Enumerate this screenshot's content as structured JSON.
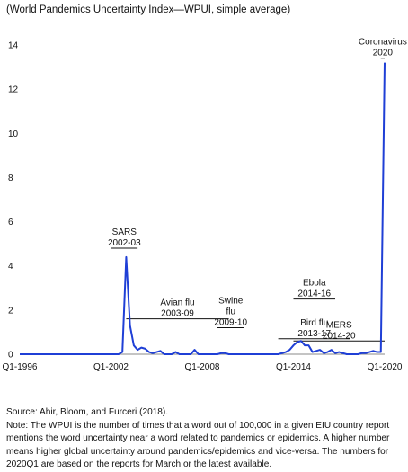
{
  "subtitle": "(World Pandemics Uncertainty Index—WPUI, simple average)",
  "source": "Source: Ahir, Bloom, and Furceri (2018).",
  "note": "Note:  The WPUI is the number of times that a word out of 100,000 in a given EIU country report mentions the word uncertainty near a word related to pandemics or epidemics. A higher number means higher global uncertainty around pandemics/epidemics and vice-versa. The numbers for 2020Q1 are based on the reports for March or the latest available.",
  "chart_data": {
    "type": "line",
    "series_color": "#1f3fd6",
    "ylim": [
      0,
      14
    ],
    "yticks": [
      0,
      2,
      4,
      6,
      8,
      10,
      12,
      14
    ],
    "x_start": "1996Q1",
    "x_end": "2020Q1",
    "xticks": [
      "Q1-1996",
      "Q1-2002",
      "Q1-2008",
      "Q1-2014",
      "Q1-2020"
    ],
    "grid": false,
    "legend": "none",
    "points": [
      {
        "x": "1996Q1",
        "y": 0
      },
      {
        "x": "2002Q3",
        "y": 0
      },
      {
        "x": "2002Q4",
        "y": 0.1
      },
      {
        "x": "2003Q1",
        "y": 4.4
      },
      {
        "x": "2003Q2",
        "y": 1.3
      },
      {
        "x": "2003Q3",
        "y": 0.4
      },
      {
        "x": "2003Q4",
        "y": 0.2
      },
      {
        "x": "2004Q1",
        "y": 0.3
      },
      {
        "x": "2004Q2",
        "y": 0.25
      },
      {
        "x": "2004Q3",
        "y": 0.1
      },
      {
        "x": "2004Q4",
        "y": 0.05
      },
      {
        "x": "2005Q1",
        "y": 0.1
      },
      {
        "x": "2005Q2",
        "y": 0.15
      },
      {
        "x": "2005Q3",
        "y": 0
      },
      {
        "x": "2006Q1",
        "y": 0
      },
      {
        "x": "2006Q2",
        "y": 0.1
      },
      {
        "x": "2006Q3",
        "y": 0
      },
      {
        "x": "2007Q2",
        "y": 0
      },
      {
        "x": "2007Q3",
        "y": 0.2
      },
      {
        "x": "2007Q4",
        "y": 0
      },
      {
        "x": "2009Q1",
        "y": 0
      },
      {
        "x": "2009Q2",
        "y": 0.05
      },
      {
        "x": "2009Q3",
        "y": 0.05
      },
      {
        "x": "2009Q4",
        "y": 0
      },
      {
        "x": "2013Q1",
        "y": 0
      },
      {
        "x": "2013Q2",
        "y": 0.05
      },
      {
        "x": "2013Q3",
        "y": 0.1
      },
      {
        "x": "2013Q4",
        "y": 0.2
      },
      {
        "x": "2014Q1",
        "y": 0.4
      },
      {
        "x": "2014Q2",
        "y": 0.55
      },
      {
        "x": "2014Q3",
        "y": 0.6
      },
      {
        "x": "2014Q4",
        "y": 0.4
      },
      {
        "x": "2015Q1",
        "y": 0.4
      },
      {
        "x": "2015Q2",
        "y": 0.1
      },
      {
        "x": "2015Q3",
        "y": 0.15
      },
      {
        "x": "2015Q4",
        "y": 0.2
      },
      {
        "x": "2016Q1",
        "y": 0.05
      },
      {
        "x": "2016Q2",
        "y": 0.1
      },
      {
        "x": "2016Q3",
        "y": 0.2
      },
      {
        "x": "2016Q4",
        "y": 0.05
      },
      {
        "x": "2017Q1",
        "y": 0.1
      },
      {
        "x": "2017Q2",
        "y": 0.05
      },
      {
        "x": "2017Q3",
        "y": 0
      },
      {
        "x": "2018Q2",
        "y": 0
      },
      {
        "x": "2018Q3",
        "y": 0.05
      },
      {
        "x": "2018Q4",
        "y": 0.05
      },
      {
        "x": "2019Q1",
        "y": 0.1
      },
      {
        "x": "2019Q2",
        "y": 0.15
      },
      {
        "x": "2019Q3",
        "y": 0.1
      },
      {
        "x": "2019Q4",
        "y": 0.1
      },
      {
        "x": "2020Q1",
        "y": 13.2
      }
    ],
    "annotations": [
      {
        "lines": [
          "SARS",
          "2002-03"
        ],
        "span": [
          "2002Q1",
          "2003Q4"
        ],
        "level": 4.8
      },
      {
        "lines": [
          "Avian flu",
          "2003-09"
        ],
        "span": [
          "2003Q1",
          "2009Q4"
        ],
        "level": 1.6
      },
      {
        "lines": [
          "Swine",
          "flu",
          "2009-10"
        ],
        "span": [
          "2009Q1",
          "2010Q4"
        ],
        "level": 1.2
      },
      {
        "lines": [
          "Bird flu",
          "2013-17"
        ],
        "span": [
          "2013Q1",
          "2017Q4"
        ],
        "level": 0.7
      },
      {
        "lines": [
          "Ebola",
          "2014-16"
        ],
        "span": [
          "2014Q1",
          "2016Q4"
        ],
        "level": 2.5
      },
      {
        "lines": [
          "MERS",
          "2014-20"
        ],
        "span": [
          "2014Q1",
          "2020Q1"
        ],
        "level": 0.6
      },
      {
        "lines": [
          "Coronavirus",
          "2020"
        ],
        "span": [
          "2019Q4",
          "2020Q1"
        ],
        "level": 13.4
      }
    ]
  }
}
